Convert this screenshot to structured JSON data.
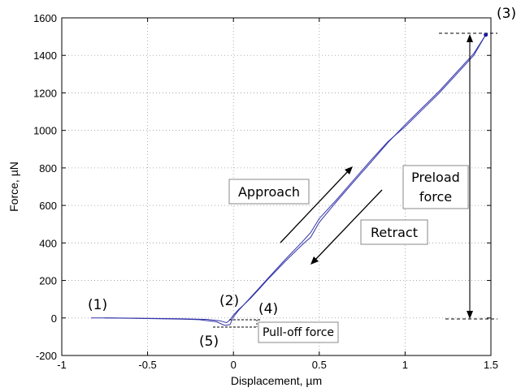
{
  "chart_data": {
    "type": "line",
    "xlabel": "Displacement, µm",
    "ylabel": "Force, µN",
    "xlim": [
      -1,
      1.5
    ],
    "ylim": [
      -200,
      1600
    ],
    "xticks": [
      -1,
      -0.5,
      0,
      0.5,
      1,
      1.5
    ],
    "xtick_labels": [
      "-1",
      "-0.5",
      "0",
      "0.5",
      "1",
      "1.5"
    ],
    "yticks": [
      -200,
      0,
      200,
      400,
      600,
      800,
      1000,
      1200,
      1400,
      1600
    ],
    "ytick_labels": [
      "-200",
      "0",
      "200",
      "400",
      "600",
      "800",
      "1000",
      "1200",
      "1400",
      "1600"
    ],
    "grid": true,
    "line_color": "#3333aa",
    "series": [
      {
        "x": [
          -0.83,
          -0.7,
          -0.5,
          -0.3,
          -0.15,
          -0.08,
          -0.04,
          -0.02,
          0.0,
          0.03,
          0.06,
          0.1,
          0.15,
          0.2,
          0.3,
          0.4,
          0.45,
          0.5,
          0.6,
          0.7,
          0.8,
          0.9,
          1.0,
          1.1,
          1.2,
          1.3,
          1.4,
          1.47
        ],
        "y": [
          0,
          0,
          -2,
          -4,
          -8,
          -15,
          -25,
          -10,
          15,
          45,
          70,
          110,
          160,
          210,
          310,
          405,
          455,
          530,
          630,
          735,
          840,
          940,
          1020,
          1110,
          1200,
          1300,
          1400,
          1510
        ]
      },
      {
        "x": [
          -0.75,
          -0.5,
          -0.3,
          -0.2,
          -0.1,
          -0.05,
          -0.02,
          0.0,
          0.03,
          0.06,
          0.1,
          0.15,
          0.2,
          0.3,
          0.4,
          0.45,
          0.5,
          0.6,
          0.7,
          0.8,
          0.9,
          1.0,
          1.1,
          1.2,
          1.3,
          1.4,
          1.47
        ],
        "y": [
          0,
          -3,
          -6,
          -9,
          -20,
          -40,
          -35,
          5,
          40,
          70,
          105,
          155,
          205,
          300,
          390,
          430,
          510,
          620,
          725,
          830,
          935,
          1030,
          1120,
          1210,
          1310,
          1410,
          1510
        ]
      }
    ],
    "annotations": {
      "p1": "(1)",
      "p2": "(2)",
      "p3": "(3)",
      "p4": "(4)",
      "p5": "(5)",
      "approach": "Approach",
      "retract": "Retract",
      "preload_line1": "Preload",
      "preload_line2": "force",
      "pulloff": "Pull-off force"
    }
  }
}
